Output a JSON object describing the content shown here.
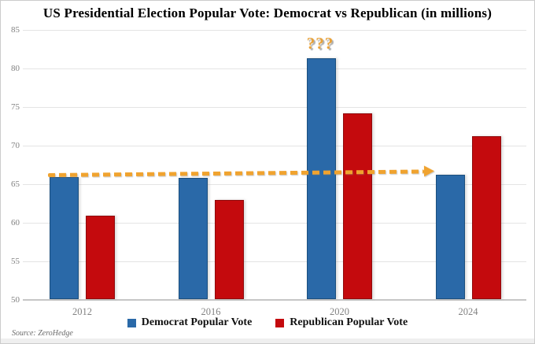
{
  "title": "US Presidential Election Popular Vote: Democrat vs Republican (in millions)",
  "annotation": {
    "question_marks": "???"
  },
  "source": "Source: ZeroHedge",
  "colors": {
    "democrat": "#2a69a8",
    "democrat_border": "#1b4f7e",
    "republican": "#c40a0d",
    "republican_border": "#900b0d",
    "arrow": "#f0a32f",
    "annotation_text": "#e8a23a",
    "gridline": "#e4e4e4",
    "axis_line": "#c6c6c6",
    "tick_label": "#828282"
  },
  "legend": [
    {
      "label": "Democrat Popular Vote",
      "color": "#2a69a8"
    },
    {
      "label": "Republican Popular Vote",
      "color": "#c40a0d"
    }
  ],
  "chart_data": {
    "type": "bar",
    "title": "US Presidential Election Popular Vote: Democrat vs Republican (in millions)",
    "categories": [
      "2012",
      "2016",
      "2020",
      "2024"
    ],
    "series": [
      {
        "name": "Democrat Popular Vote",
        "color": "#2a69a8",
        "values": [
          65.9,
          65.8,
          81.3,
          66.2
        ]
      },
      {
        "name": "Republican Popular Vote",
        "color": "#c40a0d",
        "values": [
          60.9,
          63.0,
          74.2,
          71.2
        ]
      }
    ],
    "xlabel": "",
    "ylabel": "",
    "ylim": [
      50,
      85
    ],
    "yticks": [
      50,
      55,
      60,
      65,
      70,
      75,
      80,
      85
    ],
    "grid": true,
    "legend_position": "bottom",
    "annotations": [
      {
        "text": "???",
        "target": "2020 Democrat bar top",
        "color": "#e8a23a"
      },
      {
        "type": "dashed-arrow",
        "from": "2012 Democrat bar top (65.9)",
        "to": "2024 Democrat bar top (66.2)",
        "color": "#f0a32f"
      }
    ]
  }
}
